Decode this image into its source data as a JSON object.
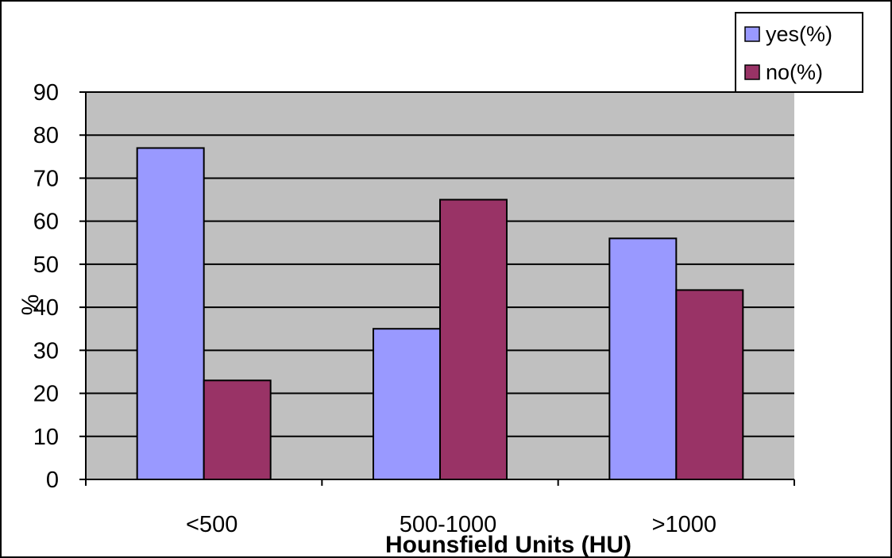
{
  "chart_data": {
    "type": "bar",
    "title": "",
    "xlabel": "Hounsfield Units (HU)",
    "ylabel": "%",
    "categories": [
      "<500",
      "500-1000",
      ">1000"
    ],
    "series": [
      {
        "name": "yes(%)",
        "values": [
          77,
          35,
          56
        ],
        "color": "#9999ff"
      },
      {
        "name": "no(%)",
        "values": [
          23,
          65,
          44
        ],
        "color": "#993366"
      }
    ],
    "ylim": [
      0,
      90
    ],
    "yticks": [
      0,
      10,
      20,
      30,
      40,
      50,
      60,
      70,
      80,
      90
    ],
    "grid": true,
    "plot_background": "#c0c0c0",
    "legend_position": "top-right"
  }
}
